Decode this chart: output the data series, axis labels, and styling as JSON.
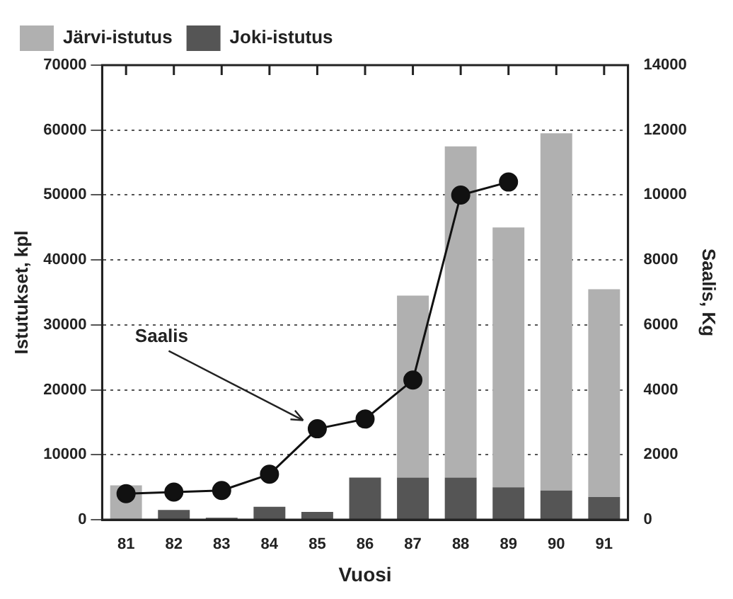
{
  "chart_data": {
    "type": "bar",
    "stacked": true,
    "xlabel": "Vuosi",
    "ylabel": "Istutukset, kpl",
    "y2label": "Saalis, Kg",
    "categories": [
      "81",
      "82",
      "83",
      "84",
      "85",
      "86",
      "87",
      "88",
      "89",
      "90",
      "91"
    ],
    "series": [
      {
        "name": "Joki-istutus",
        "color": "#555555",
        "values": [
          0,
          1500,
          300,
          2000,
          1200,
          6500,
          6500,
          6500,
          5000,
          4500,
          3500
        ]
      },
      {
        "name": "Järvi-istutus",
        "color": "#b0b0b0",
        "values": [
          5300,
          0,
          0,
          0,
          0,
          0,
          28000,
          51000,
          40000,
          55000,
          32000
        ]
      },
      {
        "name": "Saalis",
        "type": "line",
        "axis": "y2",
        "color": "#111111",
        "values": [
          800,
          850,
          900,
          1400,
          2800,
          3100,
          4300,
          10000,
          10400,
          null,
          null
        ]
      }
    ],
    "ylim": [
      0,
      70000
    ],
    "yticks": [
      0,
      10000,
      20000,
      30000,
      40000,
      50000,
      60000,
      70000
    ],
    "y2lim": [
      0,
      14000
    ],
    "y2ticks": [
      0,
      2000,
      4000,
      6000,
      8000,
      10000,
      12000,
      14000
    ],
    "grid": "y",
    "legend": "top left",
    "marker": "circle",
    "line_style": "solid"
  }
}
